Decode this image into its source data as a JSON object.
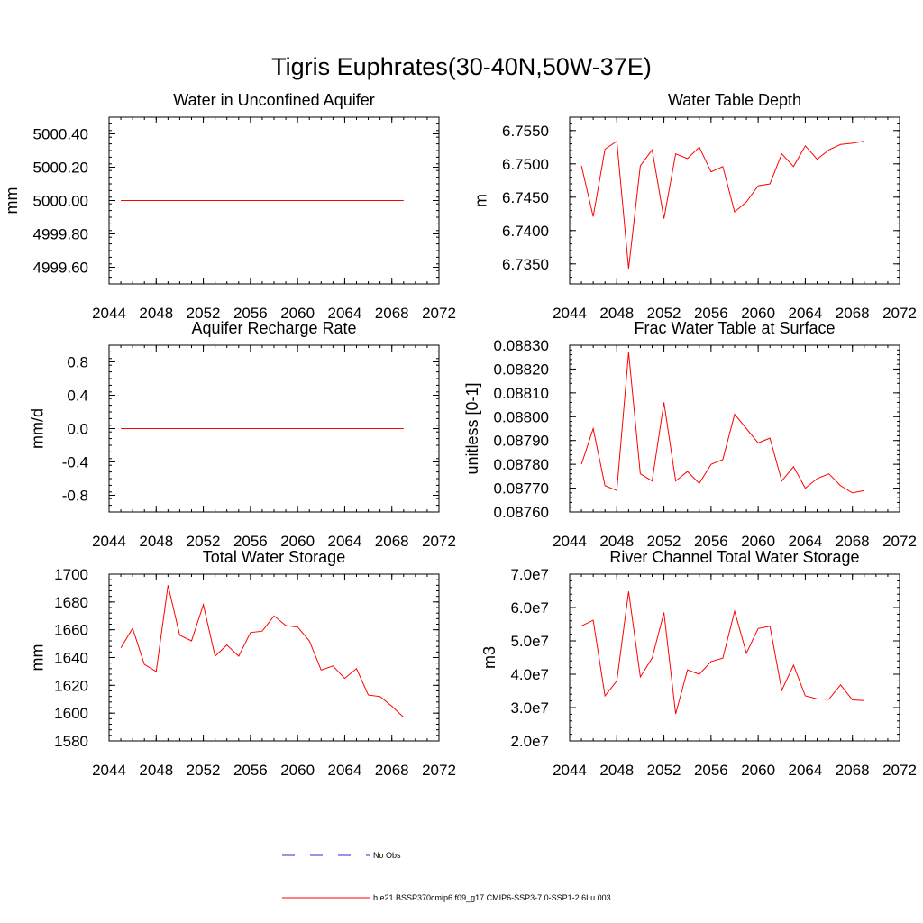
{
  "title": "Tigris Euphrates(30-40N,50W-37E)",
  "colors": {
    "series": "#ff0000",
    "no_obs": "#2b2bd6",
    "axis": "#000000"
  },
  "legend": {
    "entries": [
      {
        "label": "No Obs",
        "style": "dashed",
        "color": "#2b2bd6"
      },
      {
        "label": "b.e21.BSSP370cmip6.f09_g17.CMIP6-SSP3-7.0-SSP1-2.6Lu.003",
        "style": "solid",
        "color": "#ff0000"
      }
    ]
  },
  "chart_data": [
    {
      "type": "line",
      "title": "Water in Unconfined Aquifer",
      "xlabel": "",
      "ylabel": "mm",
      "xlim": [
        2044,
        2072
      ],
      "ylim": [
        4999.5,
        5000.5
      ],
      "xticks": [
        2044,
        2048,
        2052,
        2056,
        2060,
        2064,
        2068,
        2072
      ],
      "yticks": [
        4999.6,
        4999.8,
        5000.0,
        5000.2,
        5000.4
      ],
      "ytick_labels": [
        "4999.60",
        "4999.80",
        "5000.00",
        "5000.20",
        "5000.40"
      ],
      "x": [
        2045,
        2046,
        2047,
        2048,
        2049,
        2050,
        2051,
        2052,
        2053,
        2054,
        2055,
        2056,
        2057,
        2058,
        2059,
        2060,
        2061,
        2062,
        2063,
        2064,
        2065,
        2066,
        2067,
        2068,
        2069
      ],
      "series": [
        {
          "values": [
            5000,
            5000,
            5000,
            5000,
            5000,
            5000,
            5000,
            5000,
            5000,
            5000,
            5000,
            5000,
            5000,
            5000,
            5000,
            5000,
            5000,
            5000,
            5000,
            5000,
            5000,
            5000,
            5000,
            5000,
            5000
          ]
        }
      ]
    },
    {
      "type": "line",
      "title": "Water Table Depth",
      "xlabel": "",
      "ylabel": "m",
      "xlim": [
        2044,
        2072
      ],
      "ylim": [
        6.732,
        6.757
      ],
      "xticks": [
        2044,
        2048,
        2052,
        2056,
        2060,
        2064,
        2068,
        2072
      ],
      "yticks": [
        6.735,
        6.74,
        6.745,
        6.75,
        6.755
      ],
      "ytick_labels": [
        "6.7350",
        "6.7400",
        "6.7450",
        "6.7500",
        "6.7550"
      ],
      "x": [
        2045,
        2046,
        2047,
        2048,
        2049,
        2050,
        2051,
        2052,
        2053,
        2054,
        2055,
        2056,
        2057,
        2058,
        2059,
        2060,
        2061,
        2062,
        2063,
        2064,
        2065,
        2066,
        2067,
        2068,
        2069
      ],
      "series": [
        {
          "values": [
            6.7497,
            6.7421,
            6.7522,
            6.7534,
            6.7343,
            6.7497,
            6.7521,
            6.7418,
            6.7515,
            6.7508,
            6.7525,
            6.7488,
            6.7496,
            6.7428,
            6.7443,
            6.7467,
            6.747,
            6.7515,
            6.7496,
            6.7527,
            6.7507,
            6.7521,
            6.7529,
            6.7531,
            6.7534
          ]
        }
      ]
    },
    {
      "type": "line",
      "title": "Aquifer Recharge Rate",
      "xlabel": "",
      "ylabel": "mm/d",
      "xlim": [
        2044,
        2072
      ],
      "ylim": [
        -1.0,
        1.0
      ],
      "xticks": [
        2044,
        2048,
        2052,
        2056,
        2060,
        2064,
        2068,
        2072
      ],
      "yticks": [
        -0.8,
        -0.4,
        0.0,
        0.4,
        0.8
      ],
      "ytick_labels": [
        "-0.8",
        "-0.4",
        "0.0",
        "0.4",
        "0.8"
      ],
      "x": [
        2045,
        2046,
        2047,
        2048,
        2049,
        2050,
        2051,
        2052,
        2053,
        2054,
        2055,
        2056,
        2057,
        2058,
        2059,
        2060,
        2061,
        2062,
        2063,
        2064,
        2065,
        2066,
        2067,
        2068,
        2069
      ],
      "series": [
        {
          "values": [
            0,
            0,
            0,
            0,
            0,
            0,
            0,
            0,
            0,
            0,
            0,
            0,
            0,
            0,
            0,
            0,
            0,
            0,
            0,
            0,
            0,
            0,
            0,
            0,
            0
          ]
        }
      ]
    },
    {
      "type": "line",
      "title": "Frac Water Table at Surface",
      "xlabel": "",
      "ylabel": "unitless [0-1]",
      "xlim": [
        2044,
        2072
      ],
      "ylim": [
        0.0876,
        0.0883
      ],
      "xticks": [
        2044,
        2048,
        2052,
        2056,
        2060,
        2064,
        2068,
        2072
      ],
      "yticks": [
        0.0876,
        0.0877,
        0.0878,
        0.0879,
        0.088,
        0.0881,
        0.0882,
        0.0883
      ],
      "ytick_labels": [
        "0.08760",
        "0.08770",
        "0.08780",
        "0.08790",
        "0.08800",
        "0.08810",
        "0.08820",
        "0.08830"
      ],
      "x": [
        2045,
        2046,
        2047,
        2048,
        2049,
        2050,
        2051,
        2052,
        2053,
        2054,
        2055,
        2056,
        2057,
        2058,
        2059,
        2060,
        2061,
        2062,
        2063,
        2064,
        2065,
        2066,
        2067,
        2068,
        2069
      ],
      "series": [
        {
          "values": [
            0.0878,
            0.08795,
            0.08771,
            0.08769,
            0.08827,
            0.08776,
            0.08773,
            0.08806,
            0.08773,
            0.08777,
            0.08772,
            0.0878,
            0.08782,
            0.08801,
            0.08795,
            0.08789,
            0.08791,
            0.08773,
            0.08779,
            0.0877,
            0.08774,
            0.08776,
            0.08771,
            0.08768,
            0.08769
          ]
        }
      ]
    },
    {
      "type": "line",
      "title": "Total Water Storage",
      "xlabel": "",
      "ylabel": "mm",
      "xlim": [
        2044,
        2072
      ],
      "ylim": [
        1580,
        1700
      ],
      "xticks": [
        2044,
        2048,
        2052,
        2056,
        2060,
        2064,
        2068,
        2072
      ],
      "yticks": [
        1580,
        1600,
        1620,
        1640,
        1660,
        1680,
        1700
      ],
      "ytick_labels": [
        "1580",
        "1600",
        "1620",
        "1640",
        "1660",
        "1680",
        "1700"
      ],
      "x": [
        2045,
        2046,
        2047,
        2048,
        2049,
        2050,
        2051,
        2052,
        2053,
        2054,
        2055,
        2056,
        2057,
        2058,
        2059,
        2060,
        2061,
        2062,
        2063,
        2064,
        2065,
        2066,
        2067,
        2068,
        2069
      ],
      "series": [
        {
          "values": [
            1647,
            1661,
            1635,
            1630,
            1692,
            1656,
            1652,
            1678,
            1641,
            1649,
            1641,
            1658,
            1659,
            1670,
            1663,
            1662,
            1652,
            1631,
            1634,
            1625,
            1632,
            1613,
            1612,
            1605,
            1597
          ]
        }
      ]
    },
    {
      "type": "line",
      "title": "River Channel Total Water Storage",
      "xlabel": "",
      "ylabel": "m3",
      "xlim": [
        2044,
        2072
      ],
      "ylim": [
        20000000,
        70000000
      ],
      "xticks": [
        2044,
        2048,
        2052,
        2056,
        2060,
        2064,
        2068,
        2072
      ],
      "yticks": [
        20000000,
        30000000,
        40000000,
        50000000,
        60000000,
        70000000
      ],
      "ytick_labels": [
        "2.0e7",
        "3.0e7",
        "4.0e7",
        "5.0e7",
        "6.0e7",
        "7.0e7"
      ],
      "x": [
        2045,
        2046,
        2047,
        2048,
        2049,
        2050,
        2051,
        2052,
        2053,
        2054,
        2055,
        2056,
        2057,
        2058,
        2059,
        2060,
        2061,
        2062,
        2063,
        2064,
        2065,
        2066,
        2067,
        2068,
        2069
      ],
      "series": [
        {
          "values": [
            54500000,
            56200000,
            33500000,
            38000000,
            64800000,
            39200000,
            44800000,
            58500000,
            28100000,
            41300000,
            40000000,
            43800000,
            44800000,
            58900000,
            46300000,
            53700000,
            54400000,
            35200000,
            42700000,
            33500000,
            32600000,
            32500000,
            36800000,
            32300000,
            32100000
          ]
        }
      ]
    }
  ]
}
